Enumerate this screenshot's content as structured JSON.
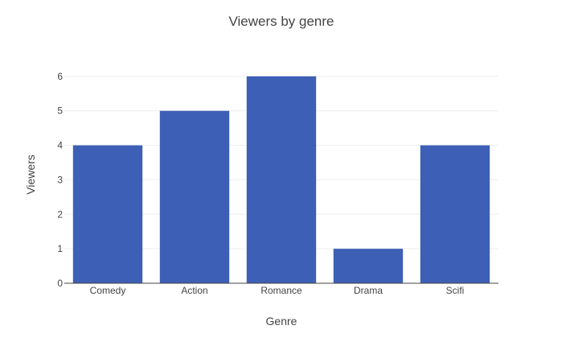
{
  "chart_data": {
    "type": "bar",
    "title": "Viewers by genre",
    "xlabel": "Genre",
    "ylabel": "Viewers",
    "categories": [
      "Comedy",
      "Action",
      "Romance",
      "Drama",
      "Scifi"
    ],
    "values": [
      4,
      5,
      6,
      1,
      4
    ],
    "ylim": [
      0,
      6.3
    ],
    "yticks": [
      0,
      1,
      2,
      3,
      4,
      5,
      6
    ],
    "bar_color": "#3d5fb5",
    "grid": true,
    "legend": "none"
  }
}
